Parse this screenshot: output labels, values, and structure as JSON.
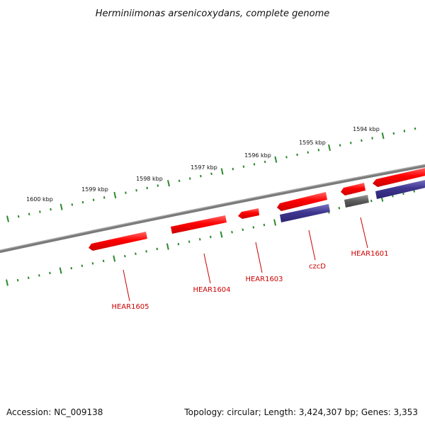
{
  "title": "Herminiimonas arsenicoxydans, complete genome",
  "footer": {
    "accession": "Accession: NC_009138",
    "topology": "Topology: circular; Length: 3,424,307 bp; Genes: 3,353"
  },
  "kbp_labels": [
    "1600 kbp",
    "1599 kbp",
    "1598 kbp",
    "1597 kbp",
    "1596 kbp",
    "1595 kbp",
    "1594 kbp"
  ],
  "gene_labels": [
    "HEAR1605",
    "HEAR1604",
    "HEAR1603",
    "czcD",
    "HEAR1601"
  ],
  "colors": {
    "forward_gene": "#ff1a1a",
    "reverse_gene": "#4a4090",
    "other_gene": "#606060",
    "backbone": "#808080",
    "ticks": "#2a8a2a",
    "label": "#cc0000"
  }
}
